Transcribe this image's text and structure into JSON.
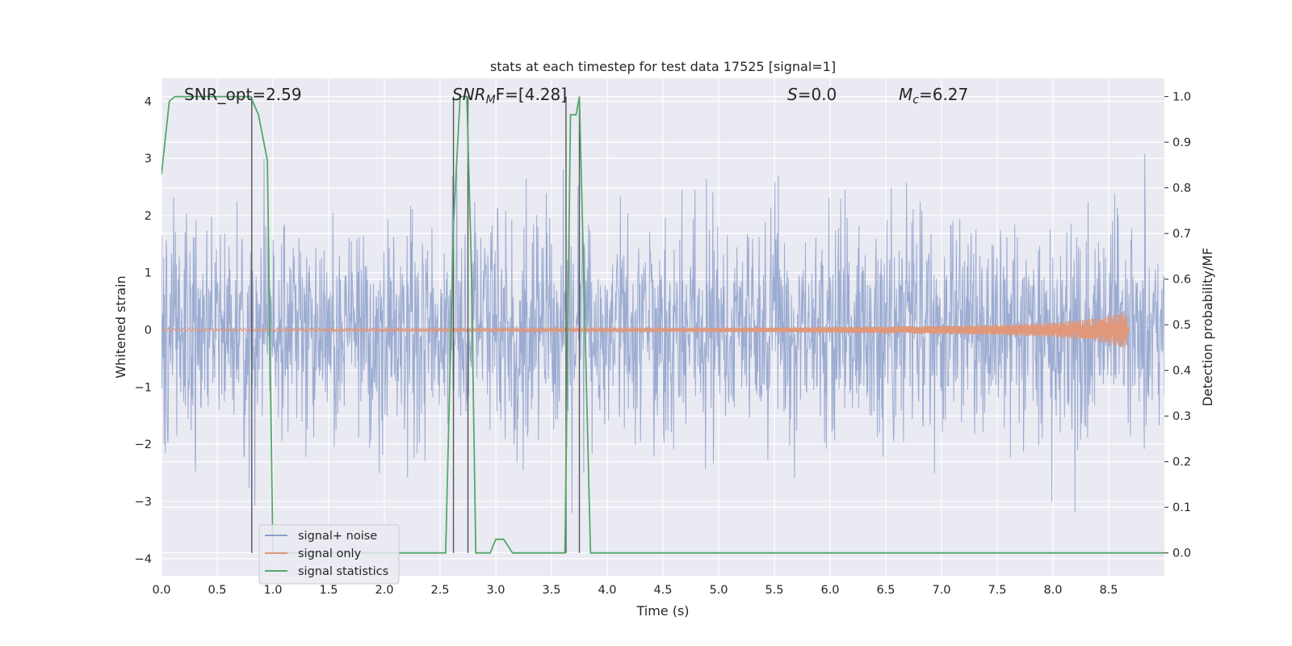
{
  "chart_data": {
    "type": "line",
    "title": "stats at each timestep for test data 17525 [signal=1]",
    "xlabel": "Time (s)",
    "ylabel": "Whitened strain",
    "ylabel_right": "Detection probability/MF",
    "xlim": [
      0.0,
      9.0
    ],
    "ylim": [
      -4.3,
      4.4
    ],
    "ylim_right": [
      -0.05,
      1.04
    ],
    "x_ticks": [
      0.0,
      0.5,
      1.0,
      1.5,
      2.0,
      2.5,
      3.0,
      3.5,
      4.0,
      4.5,
      5.0,
      5.5,
      6.0,
      6.5,
      7.0,
      7.5,
      8.0,
      8.5
    ],
    "x_tick_labels": [
      "0.0",
      "0.5",
      "1.0",
      "1.5",
      "2.0",
      "2.5",
      "3.0",
      "3.5",
      "4.0",
      "4.5",
      "5.0",
      "5.5",
      "6.0",
      "6.5",
      "7.0",
      "7.5",
      "8.0",
      "8.5"
    ],
    "y_ticks": [
      4,
      3,
      2,
      1,
      0,
      -1,
      -2,
      -3,
      -4
    ],
    "y_tick_labels": [
      "4",
      "3",
      "2",
      "1",
      "0",
      "−1",
      "−2",
      "−3",
      "−4"
    ],
    "y_right_ticks": [
      1.0,
      0.9,
      0.8,
      0.7,
      0.6,
      0.5,
      0.4,
      0.3,
      0.2,
      0.1,
      0.0
    ],
    "y_right_tick_labels": [
      "1.0",
      "0.9",
      "0.8",
      "0.7",
      "0.6",
      "0.5",
      "0.4",
      "0.3",
      "0.2",
      "0.1",
      "0.0"
    ],
    "grid": true,
    "legend_position": "lower-left",
    "annotations": {
      "snr_opt": "SNR_opt=2.59",
      "snr_mf_var": "SNR",
      "snr_mf_sub": "M",
      "snr_mf_rest": "F=[4.28]",
      "s_var": "S",
      "s_rest": "=0.0",
      "mc_var": "M",
      "mc_sub": "c",
      "mc_rest": "=6.27"
    },
    "series": [
      {
        "name": "signal+ noise",
        "color": "#8da0cb",
        "noise_sigma": 0.95,
        "noise_seed": 17525
      },
      {
        "name": "signal only",
        "color": "#e0977a",
        "envelope_t": [
          0.0,
          4.5,
          5.5,
          6.5,
          7.5,
          8.0,
          8.4,
          8.6,
          8.65,
          8.68
        ],
        "envelope_amp": [
          0.02,
          0.03,
          0.04,
          0.06,
          0.09,
          0.13,
          0.2,
          0.3,
          0.35,
          0.0
        ]
      },
      {
        "name": "signal statistics",
        "color": "#55a868",
        "axis": "right",
        "t": [
          0.0,
          0.07,
          0.12,
          0.2,
          0.8,
          0.87,
          0.95,
          1.0,
          2.55,
          2.62,
          2.68,
          2.74,
          2.78,
          2.82,
          2.88,
          2.95,
          3.0,
          3.07,
          3.15,
          3.35,
          3.55,
          3.62,
          3.67,
          3.72,
          3.75,
          3.85,
          3.93,
          4.5,
          5.0,
          9.0
        ],
        "p": [
          0.83,
          0.99,
          1.0,
          1.0,
          1.0,
          0.96,
          0.86,
          0.0,
          0.0,
          0.72,
          1.0,
          1.0,
          0.64,
          0.0,
          0.0,
          0.0,
          0.03,
          0.03,
          0.0,
          0.0,
          0.0,
          0.0,
          0.96,
          0.96,
          1.0,
          0.0,
          0.0,
          0.0,
          0.0,
          0.0
        ]
      }
    ],
    "vlines": [
      0.81,
      2.62,
      2.75,
      3.63,
      3.75
    ]
  }
}
